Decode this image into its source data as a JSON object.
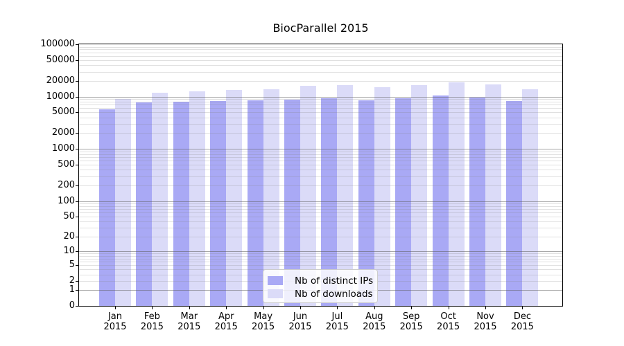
{
  "title": "BiocParallel 2015",
  "chart_data": {
    "type": "bar",
    "title": "BiocParallel 2015",
    "categories": [
      "Jan 2015",
      "Feb 2015",
      "Mar 2015",
      "Apr 2015",
      "May 2015",
      "Jun 2015",
      "Jul 2015",
      "Aug 2015",
      "Sep 2015",
      "Oct 2015",
      "Nov 2015",
      "Dec 2015"
    ],
    "series": [
      {
        "name": "Nb of distinct IPs",
        "color": "#a9a9f5",
        "values": [
          5700,
          7800,
          8000,
          8300,
          8400,
          8800,
          9400,
          8500,
          9200,
          10500,
          9700,
          8200
        ]
      },
      {
        "name": "Nb of downloads",
        "color": "#dbdbf8",
        "values": [
          9000,
          12000,
          12700,
          13400,
          13800,
          16100,
          16600,
          15300,
          16400,
          18500,
          16900,
          13800
        ]
      }
    ],
    "yscale": "log1p",
    "ylim": [
      0,
      100000
    ],
    "yticks": [
      0,
      1,
      2,
      5,
      10,
      20,
      50,
      100,
      200,
      500,
      1000,
      2000,
      5000,
      10000,
      20000,
      50000,
      100000
    ],
    "grid": true,
    "legend_position": "bottom-center",
    "colors": {
      "bar_distinct_ips": "#a9a9f5",
      "bar_downloads": "#dbdbf8",
      "grid_minor": "rgba(130,130,130,0.25)",
      "grid_major": "rgba(95,95,95,0.55)",
      "axis": "#000000",
      "background": "#ffffff",
      "legend_border": "#cccccc"
    }
  }
}
